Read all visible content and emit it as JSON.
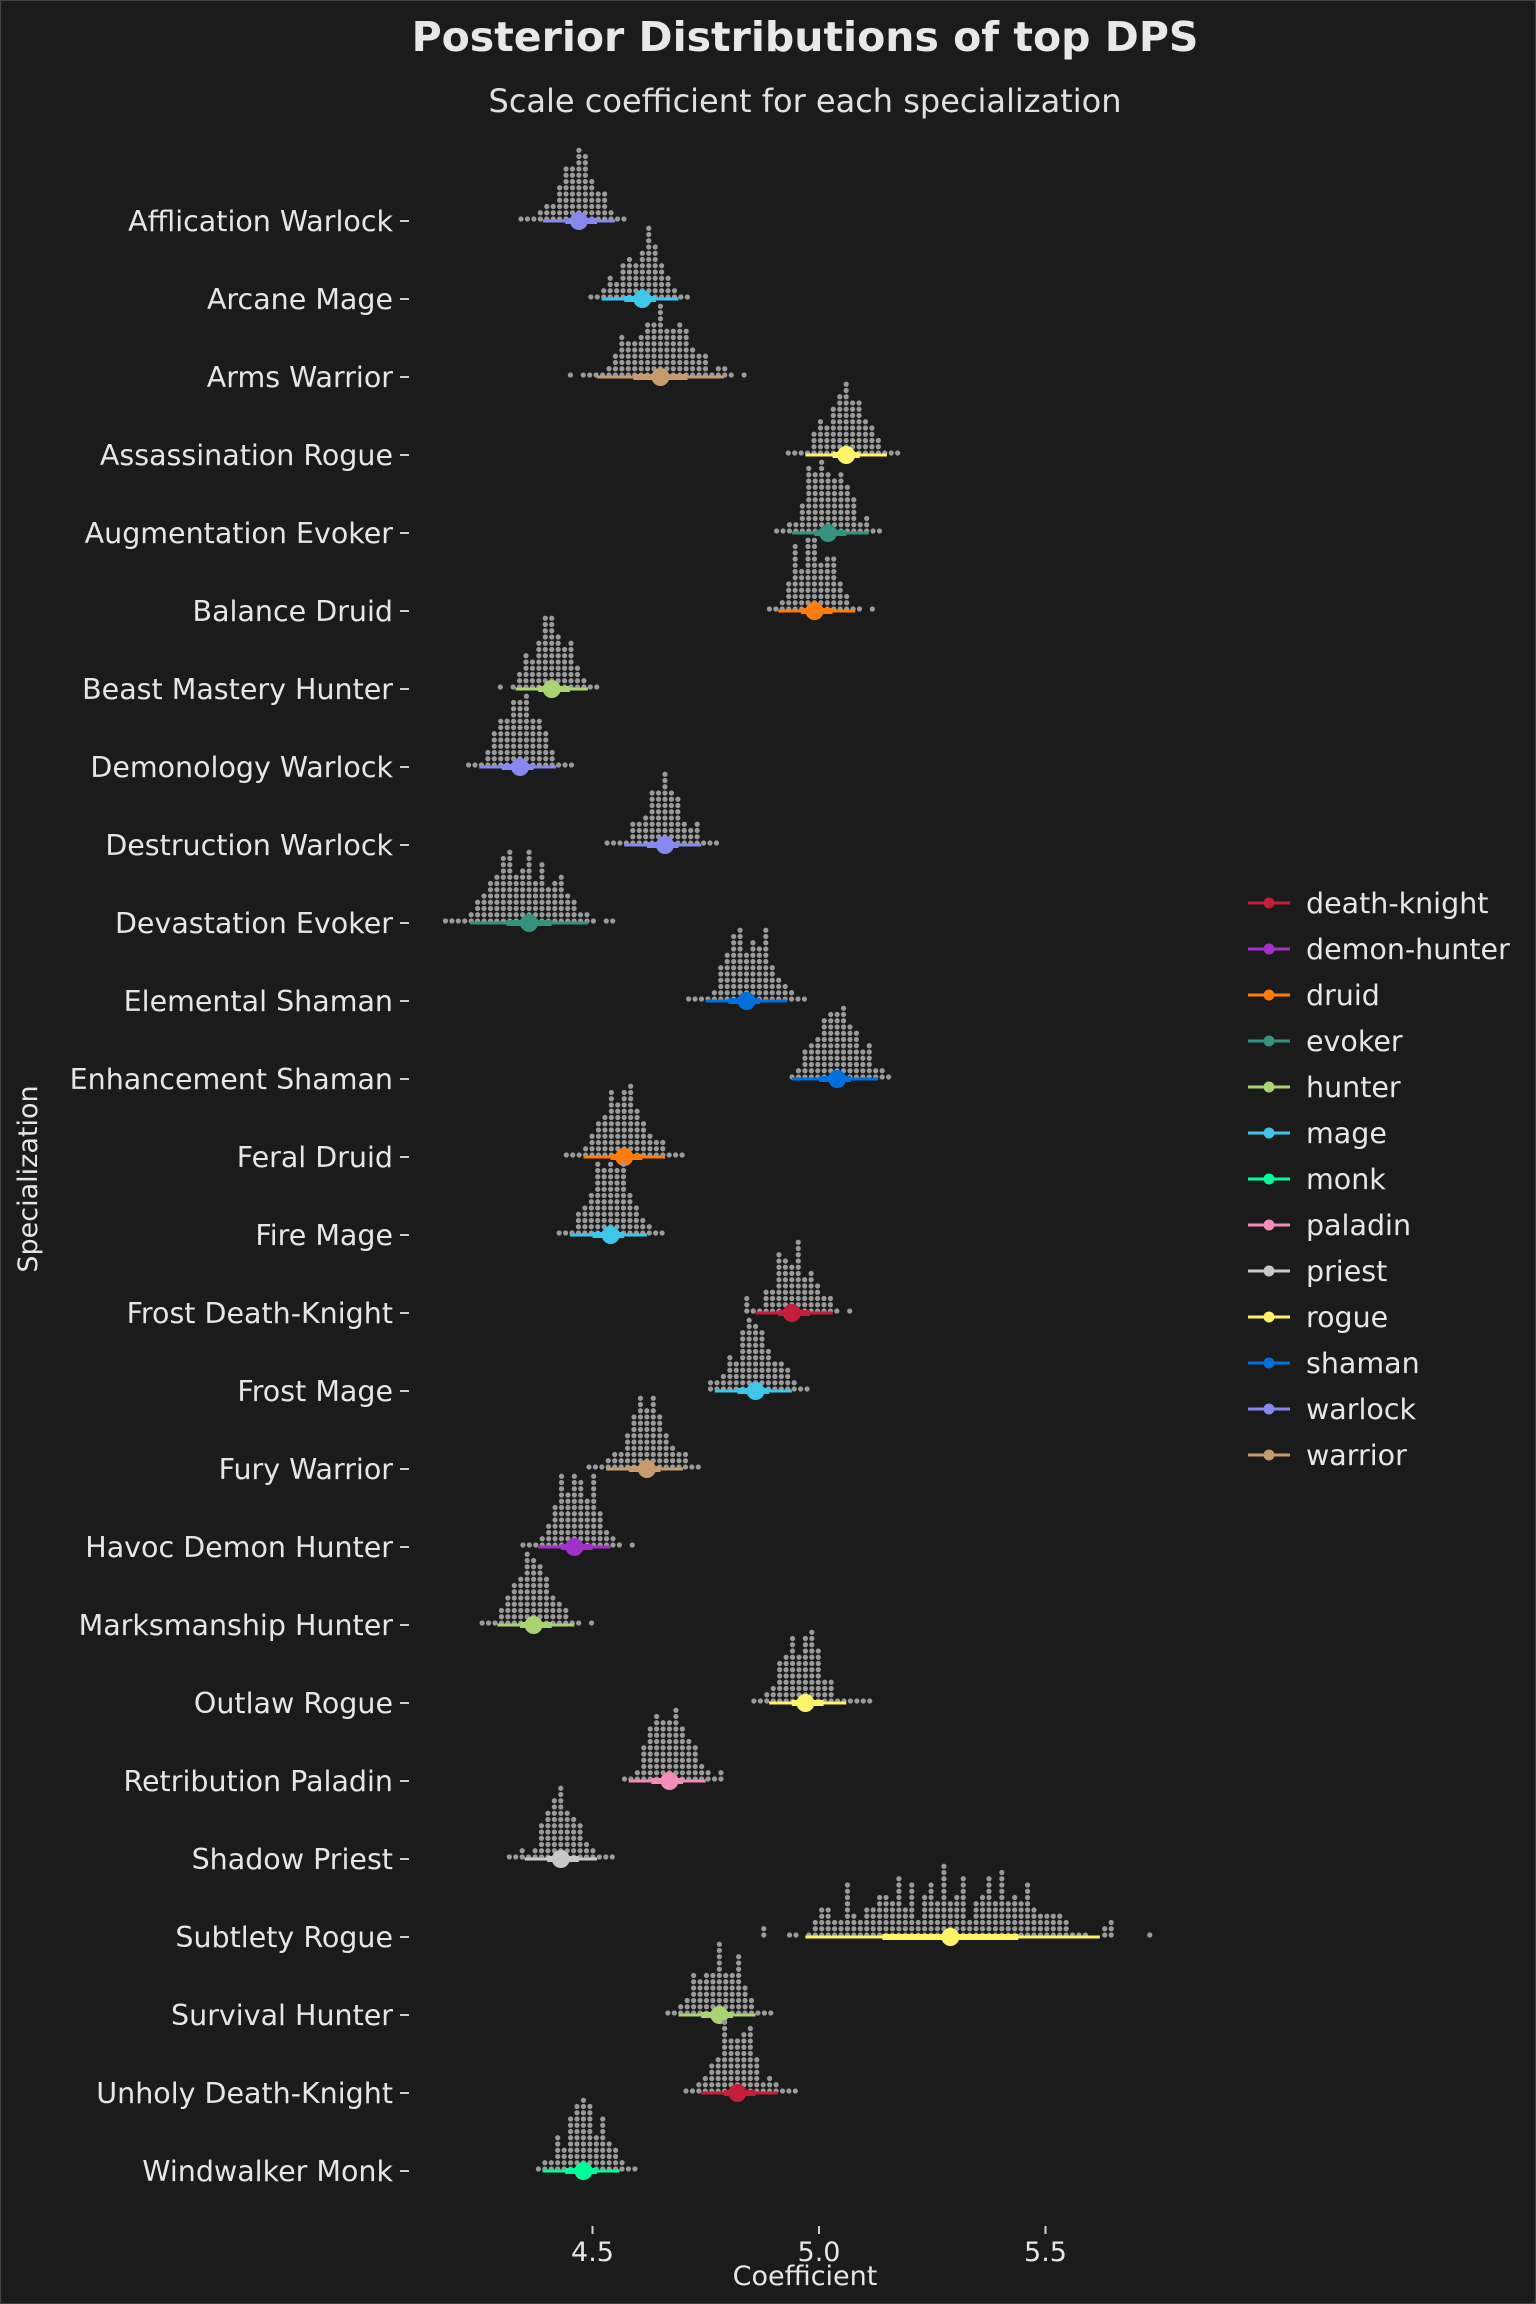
{
  "chart_data": {
    "type": "dotplot-interval",
    "title": "Posterior Distributions of top DPS",
    "subtitle": "Scale coefficient for each specialization",
    "xlabel": "Coefficient",
    "ylabel": "Specialization",
    "x_ticks": [
      4.5,
      5.0,
      5.5
    ],
    "x_tick_labels": [
      "4.5",
      "5.0",
      "5.5"
    ],
    "xlim": [
      4.08,
      5.82
    ],
    "legend_position": "right",
    "dot_color": "#9a9a9a",
    "class_colors": {
      "death-knight": "#c41e3a",
      "demon-hunter": "#a330c9",
      "druid": "#ff7c0a",
      "evoker": "#33937f",
      "hunter": "#aad372",
      "mage": "#3fc7eb",
      "monk": "#00ff98",
      "paladin": "#f48cba",
      "priest": "#c8c8c8",
      "rogue": "#fff468",
      "shaman": "#0070dd",
      "warlock": "#8788ee",
      "warrior": "#c69b6d"
    },
    "legend": [
      "death-knight",
      "demon-hunter",
      "druid",
      "evoker",
      "hunter",
      "mage",
      "monk",
      "paladin",
      "priest",
      "rogue",
      "shaman",
      "warlock",
      "warrior"
    ],
    "specs": [
      {
        "name": "Afflication Warlock",
        "class": "warlock",
        "median": 4.47,
        "interval_66": [
          4.44,
          4.51
        ],
        "interval_95": [
          4.39,
          4.55
        ],
        "min": 4.34,
        "max": 4.6
      },
      {
        "name": "Arcane Mage",
        "class": "mage",
        "median": 4.61,
        "interval_66": [
          4.57,
          4.64
        ],
        "interval_95": [
          4.52,
          4.69
        ],
        "min": 4.49,
        "max": 4.73
      },
      {
        "name": "Arms Warrior",
        "class": "warrior",
        "median": 4.65,
        "interval_66": [
          4.59,
          4.71
        ],
        "interval_95": [
          4.51,
          4.79
        ],
        "min": 4.45,
        "max": 4.85
      },
      {
        "name": "Assassination Rogue",
        "class": "rogue",
        "median": 5.06,
        "interval_66": [
          5.03,
          5.09
        ],
        "interval_95": [
          4.97,
          5.15
        ],
        "min": 4.93,
        "max": 5.19
      },
      {
        "name": "Augmentation Evoker",
        "class": "evoker",
        "median": 5.02,
        "interval_66": [
          4.99,
          5.06
        ],
        "interval_95": [
          4.94,
          5.11
        ],
        "min": 4.9,
        "max": 5.15
      },
      {
        "name": "Balance Druid",
        "class": "druid",
        "median": 4.99,
        "interval_66": [
          4.96,
          5.03
        ],
        "interval_95": [
          4.91,
          5.08
        ],
        "min": 4.87,
        "max": 5.12
      },
      {
        "name": "Beast Mastery Hunter",
        "class": "hunter",
        "median": 4.41,
        "interval_66": [
          4.38,
          4.45
        ],
        "interval_95": [
          4.33,
          4.49
        ],
        "min": 4.27,
        "max": 4.54
      },
      {
        "name": "Demonology Warlock",
        "class": "warlock",
        "median": 4.34,
        "interval_66": [
          4.3,
          4.37
        ],
        "interval_95": [
          4.25,
          4.42
        ],
        "min": 4.2,
        "max": 4.47
      },
      {
        "name": "Destruction Warlock",
        "class": "warlock",
        "median": 4.66,
        "interval_66": [
          4.62,
          4.69
        ],
        "interval_95": [
          4.57,
          4.74
        ],
        "min": 4.53,
        "max": 4.78
      },
      {
        "name": "Devastation Evoker",
        "class": "evoker",
        "median": 4.36,
        "interval_66": [
          4.31,
          4.41
        ],
        "interval_95": [
          4.23,
          4.49
        ],
        "min": 4.17,
        "max": 4.54
      },
      {
        "name": "Elemental Shaman",
        "class": "shaman",
        "median": 4.84,
        "interval_66": [
          4.8,
          4.87
        ],
        "interval_95": [
          4.75,
          4.93
        ],
        "min": 4.71,
        "max": 4.97
      },
      {
        "name": "Enhancement Shaman",
        "class": "shaman",
        "median": 5.04,
        "interval_66": [
          5.0,
          5.07
        ],
        "interval_95": [
          4.94,
          5.13
        ],
        "min": 4.9,
        "max": 5.16
      },
      {
        "name": "Feral Druid",
        "class": "druid",
        "median": 4.57,
        "interval_66": [
          4.54,
          4.61
        ],
        "interval_95": [
          4.48,
          4.66
        ],
        "min": 4.44,
        "max": 4.7
      },
      {
        "name": "Fire Mage",
        "class": "mage",
        "median": 4.54,
        "interval_66": [
          4.5,
          4.57
        ],
        "interval_95": [
          4.45,
          4.62
        ],
        "min": 4.41,
        "max": 4.66
      },
      {
        "name": "Frost Death-Knight",
        "class": "death-knight",
        "median": 4.94,
        "interval_66": [
          4.91,
          4.98
        ],
        "interval_95": [
          4.86,
          5.03
        ],
        "min": 4.82,
        "max": 5.08
      },
      {
        "name": "Frost Mage",
        "class": "mage",
        "median": 4.86,
        "interval_66": [
          4.82,
          4.89
        ],
        "interval_95": [
          4.77,
          4.94
        ],
        "min": 4.73,
        "max": 4.98
      },
      {
        "name": "Fury Warrior",
        "class": "warrior",
        "median": 4.62,
        "interval_66": [
          4.58,
          4.65
        ],
        "interval_95": [
          4.53,
          4.7
        ],
        "min": 4.49,
        "max": 4.74
      },
      {
        "name": "Havoc Demon Hunter",
        "class": "demon-hunter",
        "median": 4.46,
        "interval_66": [
          4.43,
          4.5
        ],
        "interval_95": [
          4.38,
          4.54
        ],
        "min": 4.33,
        "max": 4.59
      },
      {
        "name": "Marksmanship Hunter",
        "class": "hunter",
        "median": 4.37,
        "interval_66": [
          4.34,
          4.41
        ],
        "interval_95": [
          4.29,
          4.46
        ],
        "min": 4.25,
        "max": 4.5
      },
      {
        "name": "Outlaw Rogue",
        "class": "rogue",
        "median": 4.97,
        "interval_66": [
          4.94,
          5.01
        ],
        "interval_95": [
          4.89,
          5.06
        ],
        "min": 4.85,
        "max": 5.11
      },
      {
        "name": "Retribution Paladin",
        "class": "paladin",
        "median": 4.67,
        "interval_66": [
          4.63,
          4.7
        ],
        "interval_95": [
          4.58,
          4.75
        ],
        "min": 4.54,
        "max": 4.79
      },
      {
        "name": "Shadow Priest",
        "class": "priest",
        "median": 4.43,
        "interval_66": [
          4.4,
          4.47
        ],
        "interval_95": [
          4.35,
          4.51
        ],
        "min": 4.31,
        "max": 4.56
      },
      {
        "name": "Subtlety Rogue",
        "class": "rogue",
        "median": 5.29,
        "interval_66": [
          5.14,
          5.44
        ],
        "interval_95": [
          4.97,
          5.62
        ],
        "min": 4.88,
        "max": 5.75
      },
      {
        "name": "Survival Hunter",
        "class": "hunter",
        "median": 4.78,
        "interval_66": [
          4.74,
          4.81
        ],
        "interval_95": [
          4.69,
          4.86
        ],
        "min": 4.65,
        "max": 4.91
      },
      {
        "name": "Unholy Death-Knight",
        "class": "death-knight",
        "median": 4.82,
        "interval_66": [
          4.79,
          4.86
        ],
        "interval_95": [
          4.74,
          4.91
        ],
        "min": 4.7,
        "max": 4.95
      },
      {
        "name": "Windwalker Monk",
        "class": "monk",
        "median": 4.48,
        "interval_66": [
          4.44,
          4.51
        ],
        "interval_95": [
          4.39,
          4.56
        ],
        "min": 4.35,
        "max": 4.6
      }
    ]
  }
}
